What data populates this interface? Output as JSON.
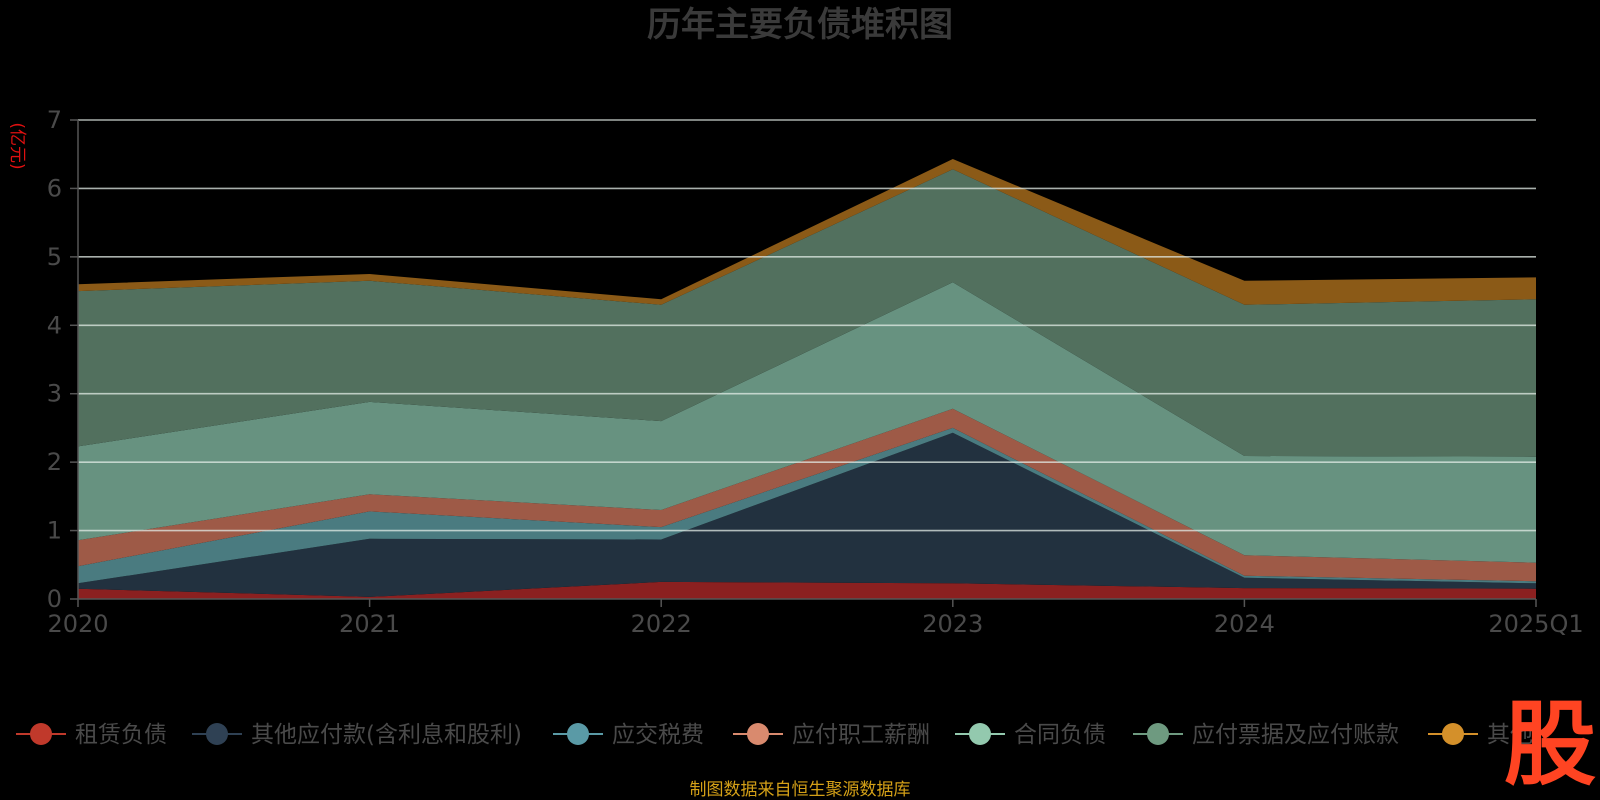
{
  "chart_data": {
    "type": "area",
    "stacked": true,
    "title": "历年主要负债堆积图",
    "unit_label": "(亿元)",
    "categories": [
      "2020",
      "2021",
      "2022",
      "2023",
      "2024",
      "2025Q1"
    ],
    "ylim": [
      0,
      7
    ],
    "yticks": [
      "0",
      "1",
      "2",
      "3",
      "4",
      "5",
      "6",
      "7"
    ],
    "grid": true,
    "legend_position": "bottom",
    "series": [
      {
        "name": "租赁负债",
        "color": "#8b2020",
        "values": [
          0.15,
          0.03,
          0.25,
          0.23,
          0.16,
          0.15
        ]
      },
      {
        "name": "其他应付款(含利息和股利)",
        "color": "#22313f",
        "values": [
          0.08,
          0.85,
          0.62,
          2.2,
          0.15,
          0.08
        ]
      },
      {
        "name": "应交税费",
        "color": "#4a7b80",
        "values": [
          0.25,
          0.4,
          0.18,
          0.07,
          0.03,
          0.03
        ]
      },
      {
        "name": "应付职工薪酬",
        "color": "#9e5a47",
        "values": [
          0.38,
          0.25,
          0.25,
          0.28,
          0.3,
          0.27
        ]
      },
      {
        "name": "合同负债",
        "color": "#679280",
        "values": [
          1.37,
          1.35,
          1.3,
          1.85,
          1.45,
          1.55
        ]
      },
      {
        "name": "应付票据及应付账款",
        "color": "#52705e",
        "values": [
          2.27,
          1.77,
          1.7,
          1.65,
          2.21,
          2.3
        ]
      },
      {
        "name": "其他",
        "color": "#8b5a17",
        "values": [
          0.1,
          0.1,
          0.08,
          0.15,
          0.35,
          0.32
        ]
      }
    ],
    "legend_marker_colors": [
      "#c0392b",
      "#2f4154",
      "#5a9aa6",
      "#d98a6e",
      "#93c9ae",
      "#6e9a80",
      "#d4902a"
    ]
  },
  "source_note": "制图数据来自恒生聚源数据库",
  "logo_text": "股"
}
